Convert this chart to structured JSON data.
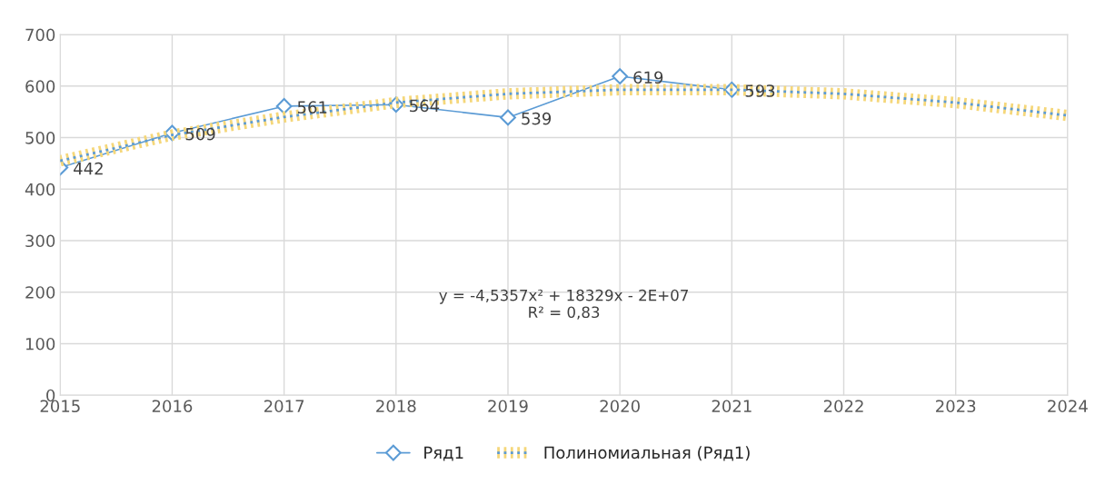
{
  "chart_data": {
    "type": "line",
    "x": [
      2015,
      2016,
      2017,
      2018,
      2019,
      2020,
      2021
    ],
    "series": [
      {
        "name": "Ряд1",
        "color": "#5b9bd5",
        "marker": "diamond",
        "line_style": "solid",
        "values": [
          442,
          509,
          561,
          564,
          539,
          619,
          593
        ],
        "value_labels": [
          "442",
          "509",
          "561",
          "564",
          "539",
          "619",
          "593"
        ]
      },
      {
        "name": "Полиномиальная (Ряд1)",
        "color": "#5b9bd5",
        "marker": "none",
        "line_style": "dotted",
        "x": [
          2015,
          2016,
          2017,
          2018,
          2019,
          2020,
          2021,
          2022,
          2023,
          2024
        ],
        "values": [
          455,
          505,
          540,
          568,
          585,
          593,
          593,
          585,
          568,
          543
        ]
      }
    ],
    "xlim": [
      2015,
      2024
    ],
    "xticks": [
      2015,
      2016,
      2017,
      2018,
      2019,
      2020,
      2021,
      2022,
      2023,
      2024
    ],
    "ylim": [
      0,
      700
    ],
    "yticks": [
      0,
      100,
      200,
      300,
      400,
      500,
      600,
      700
    ],
    "grid": true,
    "legend": "bottom",
    "annotations": [
      "y = -4,5357x² + 18329x - 2E+07\nR² = 0,83"
    ]
  }
}
